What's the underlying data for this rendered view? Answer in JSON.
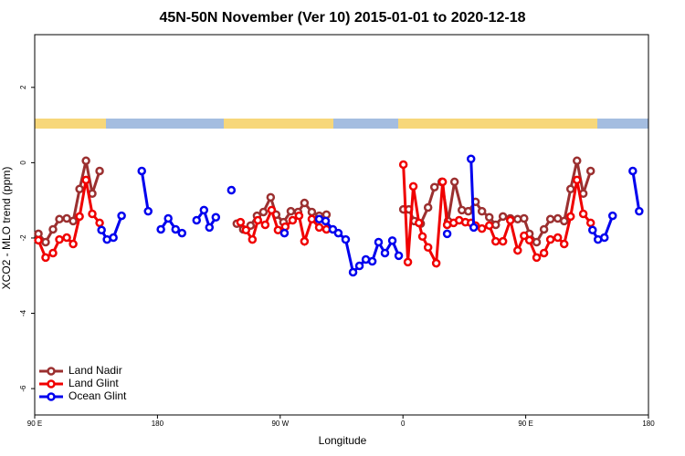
{
  "chart_data": {
    "type": "line",
    "title": "45N-50N November (Ver 10)   2015-01-01 to 2020-12-18",
    "x_label": "Longitude",
    "y_label": "XCO2 - MLO trend (ppm)",
    "xlim": [
      90,
      540
    ],
    "xticks": [
      {
        "value": 90,
        "label": "90 E"
      },
      180,
      {
        "value": 270,
        "label": "90 W"
      },
      {
        "value": 360,
        "label": "0"
      },
      {
        "value": 450,
        "label": "90 E"
      },
      {
        "value": 540,
        "label": "180"
      }
    ],
    "ylim": [
      -6.7,
      3.4
    ],
    "yticks": [
      -6,
      -4,
      -2,
      0,
      2
    ],
    "legend": "lower left",
    "series": [
      {
        "name": "Land Nadir",
        "color": "#9b3030",
        "x": [
          92.7,
          98.0,
          103.4,
          108.1,
          113.5,
          118.2,
          122.9,
          127.6,
          132.2,
          137.6,
          null,
          238.2,
          242.9,
          248.3,
          253.0,
          257.7,
          263.0,
          267.0,
          272.4,
          277.8,
          283.1,
          287.8,
          293.2,
          298.6,
          303.9,
          null,
          360.3,
          364.3,
          368.3,
          373.0,
          378.4,
          383.1,
          388.4,
          393.1,
          397.8,
          403.2,
          407.9,
          413.2,
          417.9,
          423.3,
          428.0,
          433.3,
          438.7,
          444.1,
          448.8,
          452.7,
          458.0,
          463.4,
          468.1,
          473.5,
          478.2,
          482.9,
          487.6,
          492.2,
          497.6
        ],
        "values": [
          -1.89,
          -2.11,
          -1.77,
          -1.5,
          -1.48,
          -1.55,
          -0.7,
          0.05,
          -0.82,
          -0.22,
          null,
          -1.62,
          -1.77,
          -1.67,
          -1.41,
          -1.31,
          -0.92,
          -1.38,
          -1.58,
          -1.29,
          -1.31,
          -1.07,
          -1.31,
          -1.41,
          -1.38,
          null,
          -1.24,
          -1.24,
          -1.55,
          -1.62,
          -1.19,
          -0.65,
          -0.51,
          -1.55,
          -0.51,
          -1.26,
          -1.29,
          -1.04,
          -1.29,
          -1.45,
          -1.65,
          -1.43,
          -1.48,
          -1.5,
          -1.48,
          -1.89,
          -2.11,
          -1.77,
          -1.5,
          -1.48,
          -1.55,
          -0.7,
          0.05,
          -0.82,
          -0.22
        ]
      },
      {
        "name": "Land Glint",
        "color": "#f00000",
        "x": [
          92.7,
          98.0,
          103.4,
          108.1,
          113.5,
          118.2,
          122.9,
          127.6,
          132.2,
          137.6,
          null,
          240.9,
          244.9,
          249.6,
          253.6,
          259.0,
          263.7,
          268.4,
          273.7,
          279.1,
          283.8,
          287.8,
          293.2,
          298.6,
          303.9,
          null,
          360.3,
          363.6,
          367.6,
          371.7,
          374.3,
          378.4,
          384.4,
          389.1,
          392.4,
          397.1,
          401.2,
          405.8,
          409.9,
          413.2,
          417.9,
          423.3,
          428.0,
          433.3,
          438.7,
          444.1,
          448.8,
          452.7,
          458.0,
          463.4,
          468.1,
          473.5,
          478.2,
          482.9,
          487.6,
          492.2,
          497.6
        ],
        "values": [
          -2.06,
          -2.52,
          -2.4,
          -2.04,
          -1.99,
          -2.16,
          -1.43,
          -0.46,
          -1.36,
          -1.6,
          null,
          -1.58,
          -1.79,
          -2.04,
          -1.53,
          -1.65,
          -1.26,
          -1.79,
          -1.7,
          -1.53,
          -1.41,
          -2.09,
          -1.5,
          -1.72,
          -1.77,
          null,
          -0.05,
          -2.64,
          -0.63,
          -1.6,
          -1.96,
          -2.25,
          -2.67,
          -0.51,
          -1.65,
          -1.6,
          -1.53,
          -1.58,
          -1.6,
          -1.67,
          -1.75,
          -1.67,
          -2.09,
          -2.09,
          -1.53,
          -2.33,
          -1.94,
          -2.06,
          -2.52,
          -2.4,
          -2.04,
          -1.99,
          -2.16,
          -1.43,
          -0.46,
          -1.36,
          -1.6
        ]
      },
      {
        "name": "Ocean Glint",
        "color": "#0000ee",
        "x": [
          139.0,
          143.0,
          147.7,
          153.7,
          null,
          168.5,
          173.2,
          null,
          182.5,
          187.9,
          193.3,
          198.0,
          null,
          208.7,
          214.1,
          218.1,
          222.8,
          null,
          234.2,
          null,
          273.1,
          null,
          298.6,
          303.3,
          308.6,
          312.6,
          318.0,
          323.4,
          328.1,
          332.8,
          337.5,
          342.1,
          346.8,
          352.2,
          356.9,
          null,
          392.4,
          null,
          409.9,
          411.9,
          null,
          499.0,
          503.0,
          507.7,
          513.7,
          null,
          528.5,
          533.2
        ],
        "values": [
          -1.79,
          -2.04,
          -1.99,
          -1.41,
          null,
          -0.22,
          -1.29,
          null,
          -1.77,
          -1.48,
          -1.77,
          -1.87,
          null,
          -1.53,
          -1.26,
          -1.72,
          -1.45,
          null,
          -0.73,
          null,
          -1.87,
          null,
          -1.5,
          -1.55,
          -1.77,
          -1.87,
          -2.04,
          -2.91,
          -2.74,
          -2.57,
          -2.62,
          -2.11,
          -2.4,
          -2.07,
          -2.47,
          null,
          -1.89,
          null,
          0.1,
          -1.72,
          null,
          -1.79,
          -2.04,
          -1.99,
          -1.41,
          null,
          -0.22,
          -1.29
        ]
      }
    ]
  }
}
